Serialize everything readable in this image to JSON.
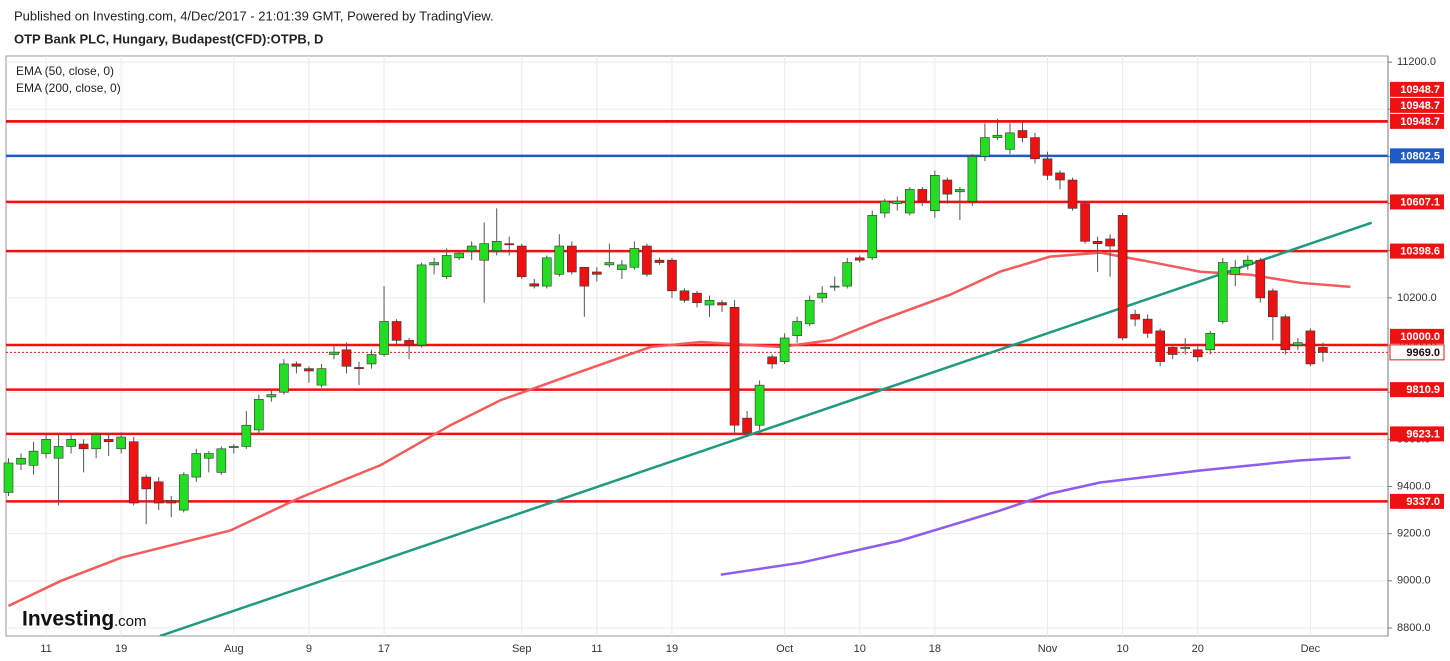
{
  "header": {
    "published": "Published on Investing.com, 4/Dec/2017 - 21:01:39 GMT, Powered by TradingView.",
    "title": "OTP Bank PLC, Hungary, Budapest(CFD):OTPB, D"
  },
  "logo": {
    "name": "Investing",
    "suffix": ".com"
  },
  "chart_data": {
    "type": "candlestick",
    "categories": [
      null,
      null,
      null,
      "11",
      null,
      null,
      null,
      null,
      null,
      "19",
      null,
      null,
      null,
      null,
      null,
      null,
      null,
      null,
      "Aug",
      null,
      null,
      null,
      null,
      null,
      "9",
      null,
      null,
      null,
      null,
      null,
      "17",
      null,
      null,
      null,
      null,
      null,
      null,
      null,
      null,
      null,
      null,
      "Sep",
      null,
      null,
      null,
      null,
      null,
      "11",
      null,
      null,
      null,
      null,
      null,
      "19",
      null,
      null,
      null,
      null,
      null,
      null,
      null,
      null,
      "Oct",
      null,
      null,
      null,
      null,
      null,
      "10",
      null,
      null,
      null,
      null,
      null,
      "18",
      null,
      null,
      null,
      null,
      null,
      null,
      null,
      null,
      "Nov",
      null,
      null,
      null,
      null,
      null,
      "10",
      null,
      null,
      null,
      null,
      null,
      "20",
      null,
      null,
      null,
      null,
      null,
      null,
      null,
      null,
      "Dec",
      null
    ],
    "open": [
      9375,
      9495,
      9490,
      9540,
      9520,
      9570,
      9580,
      9560,
      9600,
      9560,
      9590,
      9440,
      9420,
      9340,
      9300,
      9440,
      9520,
      9460,
      9565,
      9570,
      9640,
      9780,
      9800,
      9920,
      9900,
      9830,
      9960,
      9980,
      9905,
      9920,
      9960,
      10100,
      10020,
      10000,
      10340,
      10290,
      10370,
      10400,
      10360,
      10400,
      10430,
      10420,
      10260,
      10250,
      10300,
      10420,
      10330,
      10310,
      10340,
      10320,
      10330,
      10420,
      10360,
      10360,
      10230,
      10220,
      10170,
      10180,
      10160,
      9690,
      9660,
      9950,
      9930,
      10040,
      10090,
      10200,
      10250,
      10250,
      10370,
      10370,
      10560,
      10600,
      10560,
      10660,
      10570,
      10700,
      10650,
      10610,
      10800,
      10880,
      10830,
      10910,
      10880,
      10790,
      10730,
      10700,
      10600,
      10440,
      10450,
      10550,
      10130,
      10110,
      10060,
      9990,
      9985,
      9980,
      9980,
      10100,
      10300,
      10340,
      10360,
      10230,
      10120,
      10000,
      10060,
      9990
    ],
    "high": [
      9520,
      9540,
      9590,
      9620,
      9620,
      9620,
      9600,
      9630,
      9620,
      9630,
      9610,
      9450,
      9440,
      9360,
      9460,
      9560,
      9550,
      9570,
      9580,
      9720,
      9790,
      9810,
      9940,
      9930,
      9910,
      9920,
      10000,
      10010,
      9930,
      9980,
      10250,
      10110,
      10030,
      10350,
      10370,
      10410,
      10400,
      10440,
      10520,
      10580,
      10460,
      10430,
      10280,
      10380,
      10470,
      10440,
      10330,
      10330,
      10430,
      10360,
      10440,
      10430,
      10370,
      10370,
      10240,
      10230,
      10210,
      10190,
      10190,
      9720,
      9850,
      9960,
      10050,
      10120,
      10210,
      10250,
      10290,
      10370,
      10380,
      10570,
      10620,
      10630,
      10670,
      10670,
      10740,
      10710,
      10670,
      10810,
      10940,
      10960,
      10940,
      10950,
      10900,
      10820,
      10740,
      10710,
      10610,
      10460,
      10470,
      10560,
      10150,
      10130,
      10070,
      10000,
      10030,
      10000,
      10060,
      10370,
      10360,
      10380,
      10370,
      10240,
      10130,
      10030,
      10070,
      10010
    ],
    "low": [
      9360,
      9470,
      9450,
      9520,
      9320,
      9540,
      9460,
      9520,
      9530,
      9540,
      9320,
      9240,
      9300,
      9270,
      9290,
      9420,
      9460,
      9450,
      9540,
      9560,
      9620,
      9760,
      9790,
      9880,
      9840,
      9820,
      9940,
      9880,
      9830,
      9900,
      9950,
      10000,
      9940,
      9990,
      10300,
      10280,
      10360,
      10360,
      10180,
      10380,
      10380,
      10280,
      10240,
      10240,
      10290,
      10300,
      10120,
      10270,
      10330,
      10280,
      10320,
      10290,
      10340,
      10200,
      10180,
      10160,
      10120,
      10140,
      9620,
      9610,
      9640,
      9900,
      9920,
      10010,
      10080,
      10180,
      10230,
      10240,
      10350,
      10360,
      10540,
      10570,
      10550,
      10590,
      10540,
      10600,
      10530,
      10590,
      10780,
      10870,
      10810,
      10860,
      10770,
      10700,
      10660,
      10570,
      10430,
      10310,
      10290,
      10020,
      10080,
      10030,
      9910,
      9940,
      9960,
      9930,
      9960,
      10090,
      10250,
      10320,
      10180,
      10020,
      9960,
      9980,
      9910,
      9930
    ],
    "close": [
      9500,
      9520,
      9550,
      9600,
      9570,
      9600,
      9560,
      9620,
      9590,
      9610,
      9330,
      9390,
      9330,
      9330,
      9450,
      9540,
      9540,
      9560,
      9570,
      9660,
      9770,
      9790,
      9920,
      9910,
      9890,
      9900,
      9970,
      9910,
      9900,
      9960,
      10100,
      10020,
      10000,
      10340,
      10350,
      10380,
      10390,
      10420,
      10430,
      10440,
      10425,
      10290,
      10250,
      10370,
      10420,
      10310,
      10250,
      10300,
      10350,
      10340,
      10410,
      10300,
      10350,
      10230,
      10190,
      10180,
      10190,
      10170,
      9660,
      9630,
      9830,
      9920,
      10030,
      10100,
      10190,
      10220,
      10250,
      10350,
      10360,
      10550,
      10610,
      10610,
      10660,
      10610,
      10720,
      10640,
      10660,
      10800,
      10880,
      10890,
      10900,
      10880,
      10790,
      10720,
      10700,
      10580,
      10440,
      10430,
      10420,
      10030,
      10110,
      10050,
      9930,
      9960,
      9990,
      9950,
      10050,
      10350,
      10330,
      10360,
      10200,
      10120,
      9980,
      10010,
      9920,
      9969
    ],
    "up_color": "#22dd22",
    "down_color": "#ee1111",
    "lines": [
      {
        "name": "EMA (50, close, 0)",
        "color": "#f25c5c",
        "x": [
          0,
          4.2,
          9,
          17.7,
          23.3,
          29.7,
          35.3,
          39.3,
          44.9,
          51.3,
          55.3,
          61.7,
          65.7,
          69.7,
          75.2,
          79.2,
          83.2,
          87.2,
          91.2,
          95.2,
          99.2,
          103.2,
          107.2
        ],
        "values": [
          8894,
          9000,
          9098,
          9213,
          9353,
          9490,
          9660,
          9766,
          9872,
          9992,
          10013,
          9992,
          10021,
          10106,
          10213,
          10311,
          10375,
          10392,
          10353,
          10311,
          10298,
          10264,
          10247
        ]
      },
      {
        "name": "EMA (200, close, 0)",
        "color": "#8e5cf0",
        "x": [
          56.9,
          63.3,
          71.2,
          79.2,
          83.2,
          87.2,
          95.2,
          103.2,
          107.2
        ],
        "values": [
          9026,
          9077,
          9170,
          9298,
          9370,
          9417,
          9468,
          9511,
          9523
        ]
      },
      {
        "color": "#1f9a80",
        "x": [
          12.1,
          108.9
        ],
        "values": [
          8766,
          10519
        ]
      }
    ],
    "levels": [
      {
        "value": 10948.7,
        "label": "10948.7",
        "color": "#ee1111"
      },
      {
        "value": 10948.7,
        "label": "10948.7",
        "color": "#ee1111"
      },
      {
        "value": 10948.7,
        "label": "10948.7",
        "color": "#ee1111"
      },
      {
        "value": 10802.5,
        "label": "10802.5",
        "color": "#1e5bc6"
      },
      {
        "value": 10607.1,
        "label": "10607.1",
        "color": "#ee1111"
      },
      {
        "value": 10398.6,
        "label": "10398.6",
        "color": "#ee1111"
      },
      {
        "value": 10000,
        "label": "10000.0",
        "color": "#ee1111"
      },
      {
        "value": 9810.9,
        "label": "9810.9",
        "color": "#ee1111"
      },
      {
        "value": 9623.1,
        "label": "9623.1",
        "color": "#ee1111"
      },
      {
        "value": 9337,
        "label": "9337.0",
        "color": "#ee1111"
      }
    ],
    "last": {
      "value": 9969,
      "label": "9969.0",
      "color": "#ee1111"
    },
    "xlim": [
      -0.2,
      110.2
    ],
    "ylim": [
      8766,
      11226
    ],
    "yticks": [
      {
        "value": 8800,
        "label": "8800.0"
      },
      {
        "value": 9000,
        "label": "9000.0"
      },
      {
        "value": 9200,
        "label": "9200.0"
      },
      {
        "value": 9400,
        "label": "9400.0"
      },
      {
        "value": 9600,
        "label": "9600.0"
      },
      {
        "value": 9800,
        "label": "9800.0"
      },
      {
        "value": 10000,
        "label": "10000.0"
      },
      {
        "value": 10200,
        "label": "10200.0"
      },
      {
        "value": 10400,
        "label": "10400.0"
      },
      {
        "value": 10600,
        "label": "10600.0"
      },
      {
        "value": 10800,
        "label": "10800.0"
      },
      {
        "value": 11000,
        "label": "11000.0"
      },
      {
        "value": 11200,
        "label": "11200.0"
      }
    ],
    "grid": true
  }
}
